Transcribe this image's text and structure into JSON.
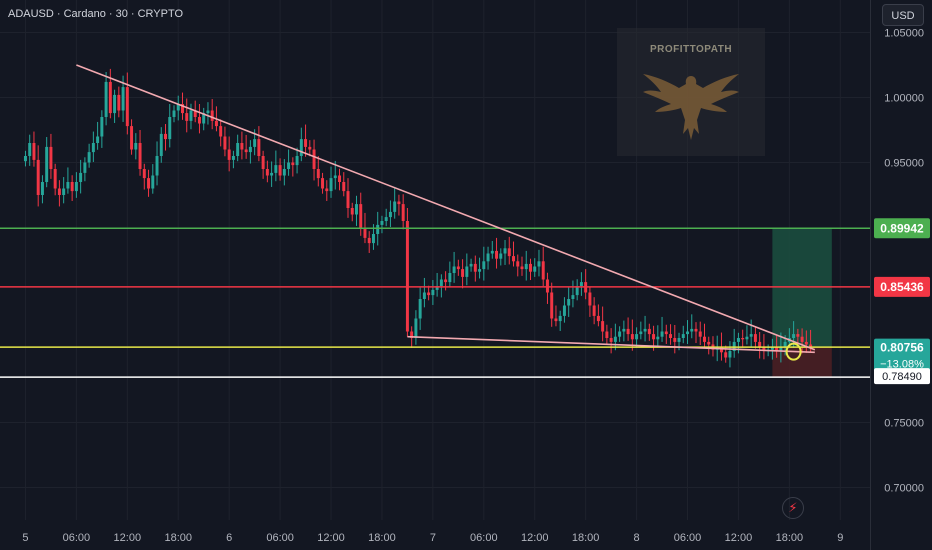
{
  "header": {
    "title": "ADAUSD · Cardano · 30 · CRYPTO",
    "currency": "USD"
  },
  "watermark": {
    "text": "PROFITTOPATH",
    "icon": "eagle-icon"
  },
  "footer": {
    "icon": "lightning-icon"
  },
  "colors": {
    "background": "#131722",
    "up": "#26a69a",
    "down": "#f23645",
    "resistance_green": "#4caf50",
    "resistance_red": "#f23645",
    "support_yellow": "#e8e84a",
    "support_white": "#ffffff",
    "trendline": "#f2a9b0",
    "target_zone": "#1b4d3e",
    "stop_zone": "#4a1f24"
  },
  "chart_data": {
    "type": "candlestick",
    "title": "ADAUSD · Cardano · 30 · CRYPTO",
    "ylim": [
      0.675,
      1.075
    ],
    "y_ticks": [
      "1.05000",
      "1.00000",
      "0.95000",
      "0.75000",
      "0.70000"
    ],
    "y_tick_values": [
      1.05,
      1.0,
      0.95,
      0.75,
      0.7
    ],
    "x_ticks": [
      {
        "label": "5",
        "t": 0
      },
      {
        "label": "06:00",
        "t": 12
      },
      {
        "label": "12:00",
        "t": 24
      },
      {
        "label": "18:00",
        "t": 36
      },
      {
        "label": "6",
        "t": 48
      },
      {
        "label": "06:00",
        "t": 60
      },
      {
        "label": "12:00",
        "t": 72
      },
      {
        "label": "18:00",
        "t": 84
      },
      {
        "label": "7",
        "t": 96
      },
      {
        "label": "06:00",
        "t": 108
      },
      {
        "label": "12:00",
        "t": 120
      },
      {
        "label": "18:00",
        "t": 132
      },
      {
        "label": "8",
        "t": 144
      },
      {
        "label": "06:00",
        "t": 156
      },
      {
        "label": "12:00",
        "t": 168
      },
      {
        "label": "18:00",
        "t": 180
      },
      {
        "label": "9",
        "t": 192
      }
    ],
    "t_range": [
      -6,
      199
    ],
    "candles_close": [
      0.955,
      0.965,
      0.952,
      0.925,
      0.935,
      0.962,
      0.945,
      0.93,
      0.925,
      0.93,
      0.935,
      0.928,
      0.935,
      0.942,
      0.95,
      0.958,
      0.965,
      0.97,
      0.985,
      1.012,
      0.988,
      1.002,
      0.99,
      1.008,
      0.978,
      0.96,
      0.965,
      0.945,
      0.938,
      0.93,
      0.94,
      0.955,
      0.972,
      0.968,
      0.985,
      0.99,
      0.995,
      0.988,
      0.982,
      0.99,
      0.985,
      0.98,
      0.988,
      0.99,
      0.982,
      0.978,
      0.97,
      0.96,
      0.952,
      0.955,
      0.965,
      0.96,
      0.958,
      0.962,
      0.968,
      0.955,
      0.945,
      0.94,
      0.942,
      0.948,
      0.94,
      0.945,
      0.95,
      0.948,
      0.955,
      0.968,
      0.962,
      0.96,
      0.945,
      0.938,
      0.93,
      0.928,
      0.938,
      0.94,
      0.935,
      0.928,
      0.915,
      0.91,
      0.918,
      0.9,
      0.892,
      0.888,
      0.895,
      0.902,
      0.905,
      0.908,
      0.912,
      0.92,
      0.918,
      0.905,
      0.82,
      0.815,
      0.83,
      0.845,
      0.85,
      0.848,
      0.852,
      0.855,
      0.86,
      0.858,
      0.865,
      0.87,
      0.868,
      0.862,
      0.87,
      0.872,
      0.866,
      0.868,
      0.874,
      0.88,
      0.882,
      0.876,
      0.88,
      0.884,
      0.878,
      0.874,
      0.87,
      0.868,
      0.872,
      0.866,
      0.87,
      0.874,
      0.86,
      0.85,
      0.83,
      0.828,
      0.832,
      0.84,
      0.845,
      0.848,
      0.855,
      0.858,
      0.85,
      0.84,
      0.832,
      0.828,
      0.82,
      0.815,
      0.812,
      0.816,
      0.82,
      0.822,
      0.818,
      0.814,
      0.818,
      0.82,
      0.822,
      0.818,
      0.814,
      0.816,
      0.82,
      0.818,
      0.815,
      0.812,
      0.815,
      0.818,
      0.82,
      0.822,
      0.82,
      0.816,
      0.812,
      0.81,
      0.806,
      0.808,
      0.804,
      0.8,
      0.805,
      0.812,
      0.815,
      0.814,
      0.816,
      0.818,
      0.812,
      0.808,
      0.805,
      0.806,
      0.808,
      0.805,
      0.808,
      0.812,
      0.815,
      0.818,
      0.816,
      0.812,
      0.81,
      0.808
    ],
    "levels": [
      {
        "name": "target",
        "value": 0.89942,
        "label": "0.89942",
        "color": "#4caf50"
      },
      {
        "name": "resistance",
        "value": 0.85436,
        "label": "0.85436",
        "color": "#f23645"
      },
      {
        "name": "current",
        "value": 0.80756,
        "label": "0.80756",
        "sub_label": "−13.08%",
        "color": "#26a69a"
      },
      {
        "name": "support",
        "value": 0.7849,
        "label": "0.78490",
        "color": "#ffffff"
      }
    ],
    "support_yellow": 0.808,
    "trendline_upper": [
      {
        "t": 12,
        "v": 1.025
      },
      {
        "t": 186,
        "v": 0.806
      }
    ],
    "trendline_lower": [
      {
        "t": 90,
        "v": 0.816
      },
      {
        "t": 186,
        "v": 0.804
      }
    ],
    "target_zone": {
      "t0": 176,
      "t1": 190,
      "v0": 0.808,
      "v1": 0.8994
    },
    "stop_zone": {
      "t0": 176,
      "t1": 190,
      "v0": 0.7849,
      "v1": 0.808
    },
    "entry_marker": {
      "t": 181,
      "v": 0.8045
    }
  }
}
